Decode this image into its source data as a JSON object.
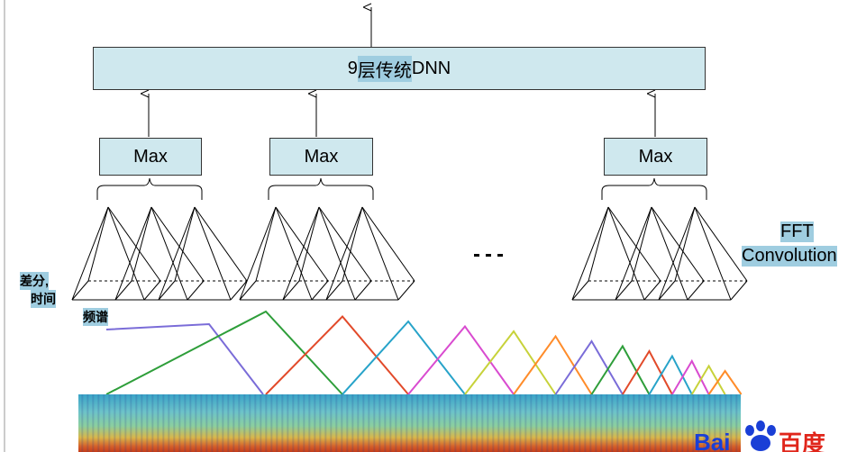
{
  "top_box": {
    "prefix": "9",
    "highlight": "层传统",
    "suffix": "DNN"
  },
  "max_label": "Max",
  "fft_label": "FFT",
  "convolution_label": "Convolution",
  "ellipsis": "…",
  "side_label_line1": "差分,",
  "side_label_line2": "时间",
  "freq_label": "频谱",
  "logo_text": "百度",
  "colors": {
    "box_fill": "#cfe8ee",
    "highlight": "#9fcde0",
    "filter_colors": [
      "#7a6cd8",
      "#2e9e3a",
      "#e24a2a",
      "#27a3c9",
      "#d94bd0",
      "#c7d23a",
      "#ff8c2a"
    ],
    "logo_blue": "#1a3fd6",
    "logo_red": "#e0261b"
  }
}
